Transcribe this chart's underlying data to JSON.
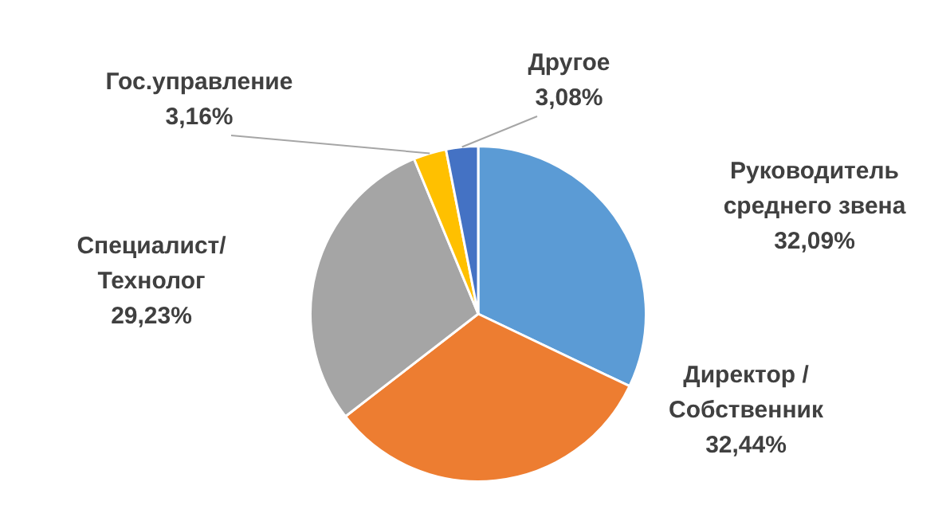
{
  "chart_data": {
    "type": "pie",
    "categories": [
      "Руководитель среднего звена",
      "Директор / Собственник",
      "Специалист/ Технолог",
      "Гос.управление",
      "Другое"
    ],
    "values": [
      32.09,
      32.44,
      29.23,
      3.16,
      3.08
    ],
    "value_labels": [
      "32,09%",
      "32,44%",
      "29,23%",
      "3,16%",
      "3,08%"
    ],
    "colors": [
      "#5b9bd5",
      "#ed7d31",
      "#a5a5a5",
      "#ffc000",
      "#4472c4"
    ],
    "legend": false
  }
}
